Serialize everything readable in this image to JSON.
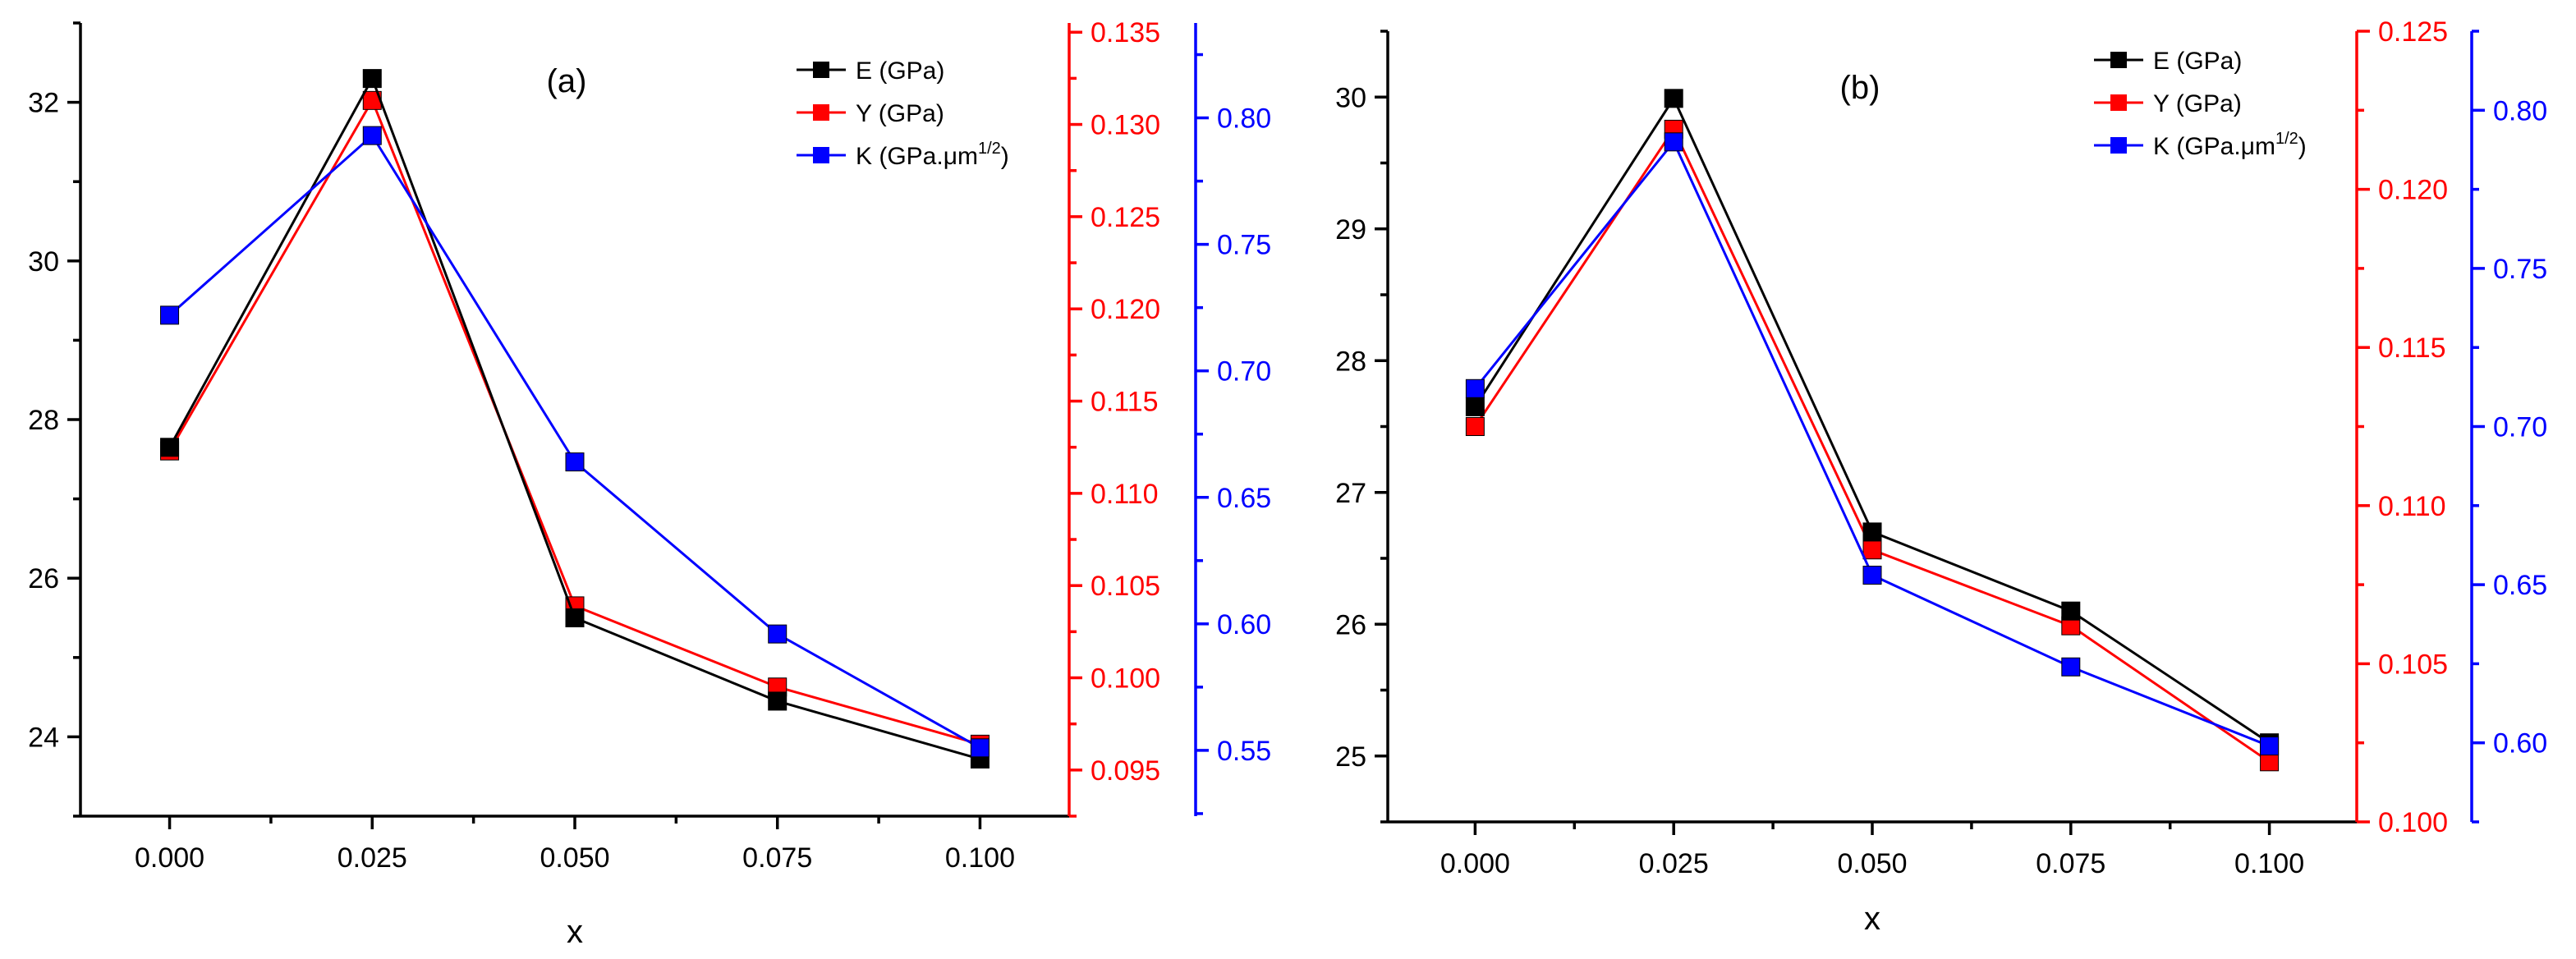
{
  "colors": {
    "black": "#000000",
    "red": "#ff0000",
    "blue": "#0000ff",
    "background": "#ffffff"
  },
  "chart_data": [
    {
      "type": "line",
      "panel_label": "(a)",
      "xlabel": "x",
      "x": [
        0.0,
        0.025,
        0.05,
        0.075,
        0.1
      ],
      "x_tick_labels": [
        "0.000",
        "0.025",
        "0.050",
        "0.075",
        "0.100"
      ],
      "xlim": [
        -0.011,
        0.111
      ],
      "axes": {
        "left": {
          "ylim": [
            23.0,
            33.0
          ],
          "ticks": [
            24,
            26,
            28,
            30,
            32
          ],
          "tick_labels": [
            "24",
            "26",
            "28",
            "30",
            "32"
          ],
          "minor_step": 1
        },
        "right1": {
          "ylim": [
            0.0925,
            0.1355
          ],
          "ticks": [
            0.095,
            0.1,
            0.105,
            0.11,
            0.115,
            0.12,
            0.125,
            0.13,
            0.135
          ],
          "tick_labels": [
            "0.095",
            "0.100",
            "0.105",
            "0.110",
            "0.115",
            "0.120",
            "0.125",
            "0.130",
            "0.135"
          ],
          "minor_step": 0.0025
        },
        "right2": {
          "ylim": [
            0.524,
            0.8375
          ],
          "ticks": [
            0.55,
            0.6,
            0.65,
            0.7,
            0.75,
            0.8
          ],
          "tick_labels": [
            "0.55",
            "0.60",
            "0.65",
            "0.70",
            "0.75",
            "0.80"
          ],
          "minor_step": 0.025
        }
      },
      "series": [
        {
          "name": "E (GPa)",
          "axis": "left",
          "color": "#000000",
          "values": [
            27.65,
            32.3,
            25.5,
            24.45,
            23.72
          ]
        },
        {
          "name": "Y (GPa)",
          "axis": "right1",
          "color": "#ff0000",
          "values": [
            0.1123,
            0.1313,
            0.1039,
            0.0995,
            0.0964
          ]
        },
        {
          "name": "K (GPa.μm",
          "name_sup": "1/2",
          "name_suffix": ")",
          "axis": "right2",
          "color": "#0000ff",
          "values": [
            0.722,
            0.793,
            0.664,
            0.596,
            0.551
          ]
        }
      ],
      "legend_position": "top-right"
    },
    {
      "type": "line",
      "panel_label": "(b)",
      "xlabel": "x",
      "x": [
        0.0,
        0.025,
        0.05,
        0.075,
        0.1
      ],
      "x_tick_labels": [
        "0.000",
        "0.025",
        "0.050",
        "0.075",
        "0.100"
      ],
      "xlim": [
        -0.011,
        0.111
      ],
      "axes": {
        "left": {
          "ylim": [
            24.5,
            30.5
          ],
          "ticks": [
            25,
            26,
            27,
            28,
            29,
            30
          ],
          "tick_labels": [
            "25",
            "26",
            "27",
            "28",
            "29",
            "30"
          ],
          "minor_step": 0.5
        },
        "right1": {
          "ylim": [
            0.1,
            0.125
          ],
          "ticks": [
            0.1,
            0.105,
            0.11,
            0.115,
            0.12,
            0.125
          ],
          "tick_labels": [
            "0.100",
            "0.105",
            "0.110",
            "0.115",
            "0.120",
            "0.125"
          ],
          "minor_step": 0.0025
        },
        "right2": {
          "ylim": [
            0.575,
            0.825
          ],
          "ticks": [
            0.6,
            0.65,
            0.7,
            0.75,
            0.8
          ],
          "tick_labels": [
            "0.60",
            "0.65",
            "0.70",
            "0.75",
            "0.80"
          ],
          "minor_step": 0.025
        }
      },
      "series": [
        {
          "name": "E (GPa)",
          "axis": "left",
          "color": "#000000",
          "values": [
            27.65,
            29.99,
            26.7,
            26.1,
            25.1
          ]
        },
        {
          "name": "Y (GPa)",
          "axis": "right1",
          "color": "#ff0000",
          "values": [
            0.1125,
            0.1219,
            0.1086,
            0.1062,
            0.1019
          ]
        },
        {
          "name": "K (GPa.μm",
          "name_sup": "1/2",
          "name_suffix": ")",
          "axis": "right2",
          "color": "#0000ff",
          "values": [
            0.712,
            0.79,
            0.653,
            0.624,
            0.599
          ]
        }
      ],
      "legend_position": "top-right"
    }
  ]
}
